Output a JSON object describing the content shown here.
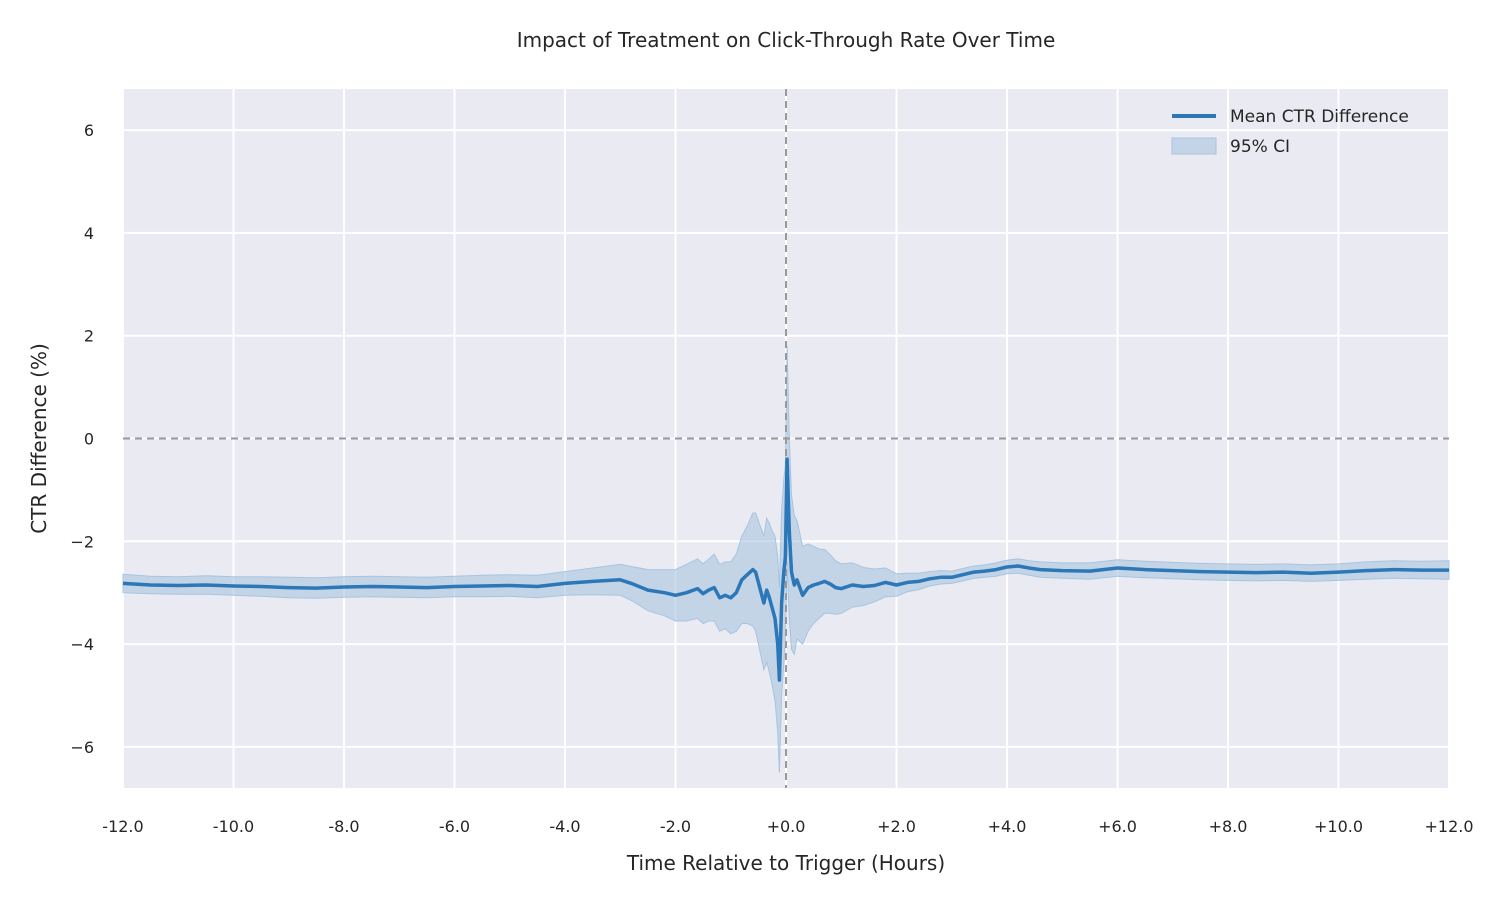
{
  "chart_data": {
    "type": "line",
    "title": "Impact of Treatment on Click-Through Rate Over Time",
    "xlabel": "Time Relative to Trigger (Hours)",
    "ylabel": "CTR Difference (%)",
    "xlim": [
      -12,
      12
    ],
    "ylim": [
      -6.8,
      6.8
    ],
    "grid": true,
    "legend_position": "top-right",
    "x_ticks": [
      {
        "value": -12,
        "label": "-12.0"
      },
      {
        "value": -10,
        "label": "-10.0"
      },
      {
        "value": -8,
        "label": "-8.0"
      },
      {
        "value": -6,
        "label": "-6.0"
      },
      {
        "value": -4,
        "label": "-4.0"
      },
      {
        "value": -2,
        "label": "-2.0"
      },
      {
        "value": 0,
        "label": "+0.0"
      },
      {
        "value": 2,
        "label": "+2.0"
      },
      {
        "value": 4,
        "label": "+4.0"
      },
      {
        "value": 6,
        "label": "+6.0"
      },
      {
        "value": 8,
        "label": "+8.0"
      },
      {
        "value": 10,
        "label": "+10.0"
      },
      {
        "value": 12,
        "label": "+12.0"
      }
    ],
    "y_ticks": [
      {
        "value": 6,
        "label": "6"
      },
      {
        "value": 4,
        "label": "4"
      },
      {
        "value": 2,
        "label": "2"
      },
      {
        "value": 0,
        "label": "0"
      },
      {
        "value": -2,
        "label": "−2"
      },
      {
        "value": -4,
        "label": "−4"
      },
      {
        "value": -6,
        "label": "−6"
      }
    ],
    "reference_lines": {
      "x": 0,
      "y": 0
    },
    "colors": {
      "line": "#2b77b7",
      "ci_fill": "#a8c4e0",
      "plot_bg": "#eaeaf2",
      "grid": "#ffffff",
      "ref_line": "#999999"
    },
    "series": [
      {
        "name": "Mean CTR Difference",
        "x": [
          -12,
          -11.5,
          -11,
          -10.5,
          -10,
          -9.5,
          -9,
          -8.5,
          -8,
          -7.5,
          -7,
          -6.5,
          -6,
          -5.5,
          -5,
          -4.5,
          -4,
          -3.5,
          -3,
          -2.8,
          -2.5,
          -2.2,
          -2,
          -1.8,
          -1.6,
          -1.5,
          -1.4,
          -1.3,
          -1.2,
          -1.1,
          -1.0,
          -0.9,
          -0.8,
          -0.7,
          -0.6,
          -0.55,
          -0.5,
          -0.45,
          -0.4,
          -0.35,
          -0.3,
          -0.25,
          -0.2,
          -0.15,
          -0.12,
          -0.08,
          -0.04,
          -0.01,
          0.02,
          0.06,
          0.1,
          0.15,
          0.2,
          0.3,
          0.4,
          0.5,
          0.6,
          0.7,
          0.8,
          0.9,
          1.0,
          1.2,
          1.4,
          1.6,
          1.8,
          2.0,
          2.2,
          2.4,
          2.6,
          2.8,
          3.0,
          3.2,
          3.4,
          3.6,
          3.8,
          4.0,
          4.2,
          4.4,
          4.6,
          5.0,
          5.5,
          6.0,
          6.5,
          7.0,
          7.5,
          8.0,
          8.5,
          9.0,
          9.5,
          10.0,
          10.5,
          11.0,
          11.5,
          12.0
        ],
        "y": [
          -2.82,
          -2.85,
          -2.86,
          -2.85,
          -2.87,
          -2.88,
          -2.9,
          -2.91,
          -2.89,
          -2.88,
          -2.89,
          -2.9,
          -2.88,
          -2.87,
          -2.86,
          -2.88,
          -2.82,
          -2.78,
          -2.75,
          -2.82,
          -2.95,
          -3.0,
          -3.05,
          -3.0,
          -2.92,
          -3.02,
          -2.95,
          -2.9,
          -3.1,
          -3.05,
          -3.1,
          -3.0,
          -2.75,
          -2.65,
          -2.55,
          -2.6,
          -2.8,
          -3.0,
          -3.2,
          -2.95,
          -3.1,
          -3.3,
          -3.5,
          -4.0,
          -4.7,
          -3.2,
          -2.6,
          -2.3,
          -0.4,
          -1.8,
          -2.6,
          -2.85,
          -2.75,
          -3.05,
          -2.9,
          -2.85,
          -2.82,
          -2.78,
          -2.83,
          -2.9,
          -2.92,
          -2.85,
          -2.88,
          -2.86,
          -2.8,
          -2.85,
          -2.8,
          -2.78,
          -2.73,
          -2.7,
          -2.7,
          -2.65,
          -2.6,
          -2.58,
          -2.55,
          -2.5,
          -2.48,
          -2.52,
          -2.55,
          -2.57,
          -2.58,
          -2.52,
          -2.55,
          -2.57,
          -2.59,
          -2.6,
          -2.61,
          -2.6,
          -2.62,
          -2.6,
          -2.57,
          -2.55,
          -2.56,
          -2.56
        ]
      },
      {
        "name": "95% CI",
        "x": [
          -12,
          -11.5,
          -11,
          -10.5,
          -10,
          -9.5,
          -9,
          -8.5,
          -8,
          -7.5,
          -7,
          -6.5,
          -6,
          -5.5,
          -5,
          -4.5,
          -4,
          -3.5,
          -3,
          -2.8,
          -2.5,
          -2.2,
          -2,
          -1.8,
          -1.6,
          -1.5,
          -1.4,
          -1.3,
          -1.2,
          -1.1,
          -1.0,
          -0.9,
          -0.8,
          -0.7,
          -0.6,
          -0.55,
          -0.5,
          -0.45,
          -0.4,
          -0.35,
          -0.3,
          -0.25,
          -0.2,
          -0.15,
          -0.12,
          -0.08,
          -0.04,
          -0.01,
          0.02,
          0.06,
          0.1,
          0.15,
          0.2,
          0.3,
          0.4,
          0.5,
          0.6,
          0.7,
          0.8,
          0.9,
          1.0,
          1.2,
          1.4,
          1.6,
          1.8,
          2.0,
          2.2,
          2.4,
          2.6,
          2.8,
          3.0,
          3.2,
          3.4,
          3.6,
          3.8,
          4.0,
          4.2,
          4.4,
          4.6,
          5.0,
          5.5,
          6.0,
          6.5,
          7.0,
          7.5,
          8.0,
          8.5,
          9.0,
          9.5,
          10.0,
          10.5,
          11.0,
          11.5,
          12.0
        ],
        "lower": [
          -3.0,
          -3.02,
          -3.03,
          -3.03,
          -3.05,
          -3.07,
          -3.1,
          -3.11,
          -3.09,
          -3.08,
          -3.09,
          -3.1,
          -3.08,
          -3.08,
          -3.07,
          -3.1,
          -3.05,
          -3.04,
          -3.05,
          -3.15,
          -3.35,
          -3.45,
          -3.55,
          -3.55,
          -3.5,
          -3.6,
          -3.55,
          -3.55,
          -3.75,
          -3.7,
          -3.8,
          -3.75,
          -3.6,
          -3.6,
          -3.65,
          -3.75,
          -4.0,
          -4.25,
          -4.5,
          -4.35,
          -4.55,
          -4.8,
          -5.1,
          -5.7,
          -6.5,
          -5.0,
          -4.4,
          -4.0,
          -2.4,
          -3.5,
          -4.1,
          -4.2,
          -3.9,
          -4.0,
          -3.75,
          -3.6,
          -3.5,
          -3.4,
          -3.4,
          -3.42,
          -3.4,
          -3.28,
          -3.25,
          -3.18,
          -3.08,
          -3.07,
          -2.98,
          -2.94,
          -2.87,
          -2.83,
          -2.82,
          -2.77,
          -2.72,
          -2.7,
          -2.68,
          -2.63,
          -2.62,
          -2.66,
          -2.7,
          -2.72,
          -2.74,
          -2.68,
          -2.71,
          -2.73,
          -2.75,
          -2.76,
          -2.77,
          -2.76,
          -2.78,
          -2.76,
          -2.74,
          -2.72,
          -2.73,
          -2.74
        ],
        "upper": [
          -2.64,
          -2.68,
          -2.69,
          -2.67,
          -2.69,
          -2.69,
          -2.7,
          -2.71,
          -2.69,
          -2.68,
          -2.69,
          -2.7,
          -2.68,
          -2.66,
          -2.65,
          -2.66,
          -2.59,
          -2.52,
          -2.45,
          -2.49,
          -2.55,
          -2.55,
          -2.55,
          -2.45,
          -2.34,
          -2.44,
          -2.35,
          -2.25,
          -2.45,
          -2.4,
          -2.4,
          -2.25,
          -1.9,
          -1.7,
          -1.45,
          -1.45,
          -1.6,
          -1.75,
          -1.9,
          -1.55,
          -1.65,
          -1.8,
          -1.9,
          -2.3,
          -2.9,
          -1.4,
          -0.8,
          -0.5,
          1.8,
          0.0,
          -1.1,
          -1.5,
          -1.6,
          -2.1,
          -2.05,
          -2.1,
          -2.15,
          -2.16,
          -2.26,
          -2.38,
          -2.44,
          -2.42,
          -2.51,
          -2.54,
          -2.52,
          -2.63,
          -2.62,
          -2.62,
          -2.59,
          -2.57,
          -2.58,
          -2.53,
          -2.48,
          -2.46,
          -2.42,
          -2.37,
          -2.34,
          -2.38,
          -2.4,
          -2.42,
          -2.42,
          -2.36,
          -2.39,
          -2.41,
          -2.43,
          -2.44,
          -2.45,
          -2.44,
          -2.46,
          -2.44,
          -2.4,
          -2.38,
          -2.39,
          -2.38
        ]
      }
    ]
  }
}
